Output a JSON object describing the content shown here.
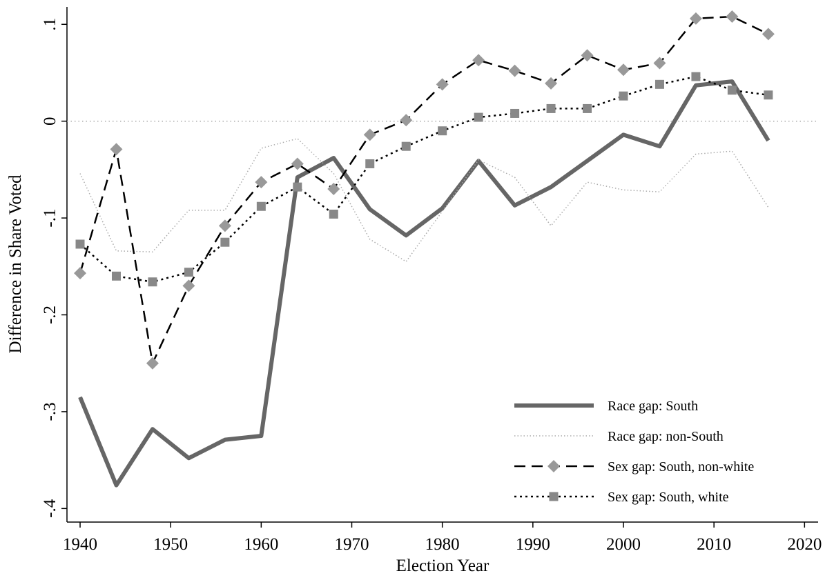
{
  "chart_data": {
    "type": "line",
    "xlabel": "Election Year",
    "ylabel": "Difference in Share Voted",
    "x": [
      1940,
      1944,
      1948,
      1952,
      1956,
      1960,
      1964,
      1968,
      1972,
      1976,
      1980,
      1984,
      1988,
      1992,
      1996,
      2000,
      2004,
      2008,
      2012,
      2016
    ],
    "xlim": [
      1938.55,
      2021.5
    ],
    "xticks": [
      1940,
      1950,
      1960,
      1970,
      1980,
      1990,
      2000,
      2010,
      2020
    ],
    "ylim": [
      -0.414,
      0.118
    ],
    "yticks": [
      {
        "value": 0.1,
        "label": ".1"
      },
      0,
      {
        "value": -0.1,
        "label": "-.1"
      },
      {
        "value": -0.2,
        "label": "-.2"
      },
      {
        "value": -0.3,
        "label": "-.3"
      },
      {
        "value": -0.4,
        "label": "-.4"
      }
    ],
    "reference_line": 0,
    "legend": "lower right",
    "series": [
      {
        "name": "Race gap: South",
        "color": "#666666",
        "line_style": "solid",
        "marker": null,
        "values": [
          -0.285,
          -0.376,
          -0.318,
          -0.348,
          -0.329,
          -0.325,
          -0.058,
          -0.038,
          -0.091,
          -0.118,
          -0.09,
          -0.041,
          -0.087,
          -0.068,
          -0.041,
          -0.014,
          -0.026,
          0.037,
          0.041,
          -0.02
        ]
      },
      {
        "name": "Race gap: non-South",
        "color": "#aaaaaa",
        "line_style": "dotted",
        "marker": null,
        "values": [
          -0.054,
          -0.134,
          -0.135,
          -0.092,
          -0.092,
          -0.028,
          -0.018,
          -0.054,
          -0.122,
          -0.145,
          -0.093,
          -0.04,
          -0.058,
          -0.108,
          -0.063,
          -0.071,
          -0.073,
          -0.034,
          -0.031,
          -0.089
        ]
      },
      {
        "name": "Sex gap: South, non-white",
        "color": "#000000",
        "line_style": "dashed",
        "marker": "diamond",
        "marker_color": "#999999",
        "values": [
          -0.157,
          -0.029,
          -0.25,
          -0.17,
          -0.108,
          -0.063,
          -0.044,
          -0.07,
          -0.014,
          0.001,
          0.038,
          0.063,
          0.052,
          0.039,
          0.068,
          0.053,
          0.06,
          0.106,
          0.108,
          0.09
        ]
      },
      {
        "name": "Sex gap: South, white",
        "color": "#000000",
        "line_style": "dotted",
        "marker": "square",
        "marker_color": "#888888",
        "values": [
          -0.127,
          -0.16,
          -0.166,
          -0.156,
          -0.125,
          -0.088,
          -0.068,
          -0.096,
          -0.044,
          -0.026,
          -0.01,
          0.004,
          0.008,
          0.013,
          0.013,
          0.026,
          0.038,
          0.046,
          0.032,
          0.027
        ]
      }
    ]
  }
}
